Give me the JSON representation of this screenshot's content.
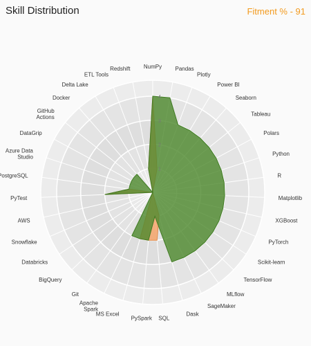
{
  "header": {
    "title": "Skill Distribution",
    "fitment": "Fitment % - 91"
  },
  "colors": {
    "fitment": "#f29a1e",
    "candidate_fill": "#f5a56a",
    "required_fill": "#4f8a2f",
    "overlap_teal": "#4a9a7a"
  },
  "chart_data": {
    "type": "radar",
    "title": "",
    "categories": [
      "NumPy",
      "Pandas",
      "Plotly",
      "Power BI",
      "Seaborn",
      "Tableau",
      "Polars",
      "Python",
      "R",
      "Matplotlib",
      "XGBoost",
      "PyTorch",
      "Scikit-learn",
      "TensorFlow",
      "MLflow",
      "SageMaker",
      "Dask",
      "SQL",
      "PySpark",
      "MS Excel",
      "Apache Spark",
      "Git",
      "BigQuery",
      "Databricks",
      "Snowflake",
      "AWS",
      "PyTest",
      "PostgreSQL",
      "Azure Data Studio",
      "DataGrip",
      "GitHub Actions",
      "Docker",
      "Delta Lake",
      "ETL Tools",
      "Redshift"
    ],
    "rmax": 4,
    "ticks": [
      "1",
      "2",
      "3",
      "4"
    ],
    "grid": true,
    "series": [
      {
        "key": "candidate",
        "values": [
          4,
          1,
          0,
          0,
          0,
          0,
          0,
          0,
          0,
          0,
          0,
          0,
          0,
          0,
          0,
          0,
          1,
          2,
          2,
          2,
          0,
          0,
          0,
          0,
          0,
          0,
          2,
          1,
          0,
          0,
          0,
          0,
          0,
          0,
          1
        ]
      },
      {
        "key": "required",
        "values": [
          4,
          4,
          3,
          3,
          3,
          3,
          3,
          3,
          3,
          3,
          3,
          3,
          3,
          3,
          3,
          3,
          3,
          1,
          2,
          2,
          2,
          0,
          0,
          0,
          0,
          0,
          2,
          1,
          1,
          1,
          1,
          1,
          0,
          0,
          1
        ]
      }
    ]
  }
}
